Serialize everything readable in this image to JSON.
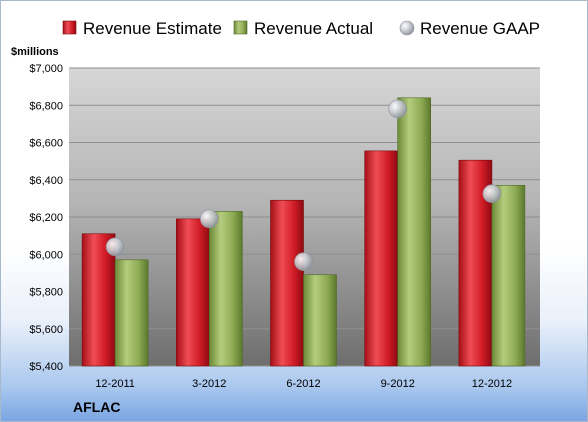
{
  "chart_data": {
    "type": "bar",
    "units_label": "$millions",
    "company": "AFLAC",
    "categories": [
      "12-2011",
      "3-2012",
      "6-2012",
      "9-2012",
      "12-2012"
    ],
    "series": [
      {
        "name": "Revenue Estimate",
        "mark": "bar",
        "color": "#d0202a",
        "values": [
          6110,
          6190,
          6290,
          6555,
          6505
        ]
      },
      {
        "name": "Revenue Actual",
        "mark": "bar",
        "color": "#8fad56",
        "values": [
          5970,
          6230,
          5890,
          6840,
          6370
        ]
      },
      {
        "name": "Revenue GAAP",
        "mark": "point",
        "color": "#b8bcc4",
        "values": [
          6040,
          6190,
          5960,
          6780,
          6325
        ]
      }
    ],
    "y_ticks": [
      "$5,400",
      "$5,600",
      "$5,800",
      "$6,000",
      "$6,200",
      "$6,400",
      "$6,600",
      "$6,800",
      "$7,000"
    ],
    "ylim": [
      5400,
      7000
    ],
    "y_tick_step": 200,
    "grid": true,
    "legend": "top"
  }
}
